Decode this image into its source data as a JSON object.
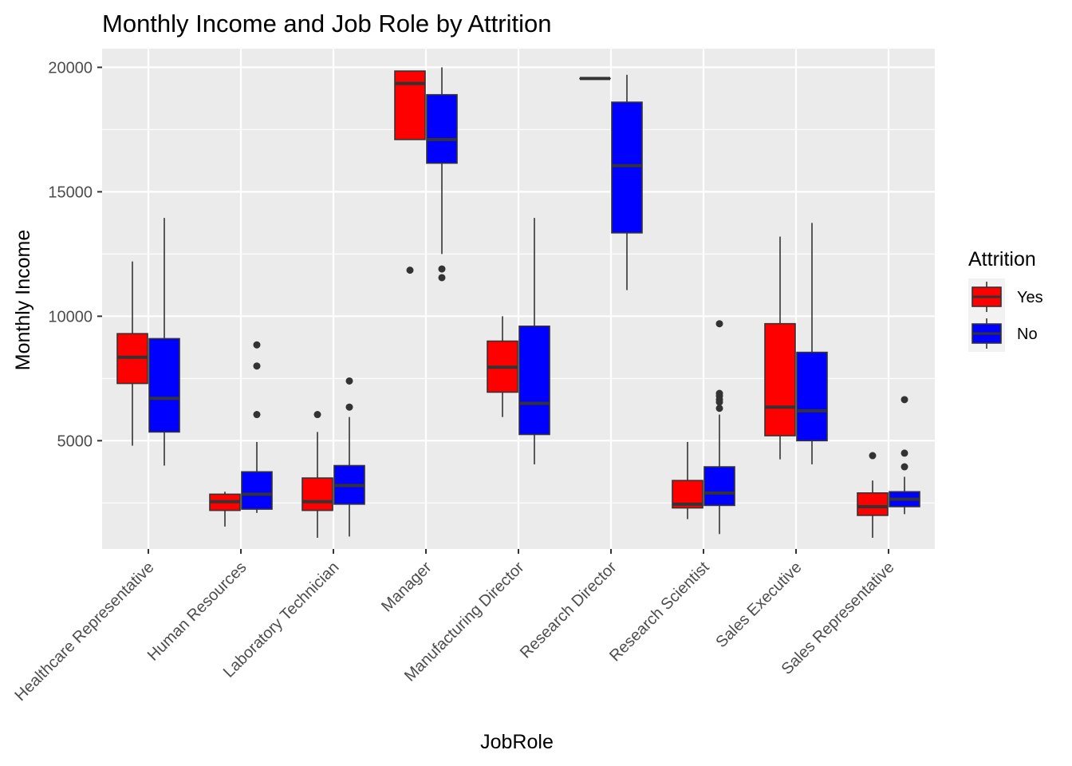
{
  "chart_data": {
    "type": "boxplot",
    "title": "Monthly Income and Job Role by Attrition",
    "xlabel": "JobRole",
    "ylabel": "Monthly Income",
    "ylim": [
      650,
      20750
    ],
    "yticks": [
      5000,
      10000,
      15000,
      20000
    ],
    "grid": true,
    "legend": {
      "title": "Attrition",
      "position": "right",
      "entries": [
        {
          "label": "Yes",
          "color": "#ff0000"
        },
        {
          "label": "No",
          "color": "#0000ff"
        }
      ]
    },
    "categories": [
      "Healthcare Representative",
      "Human Resources",
      "Laboratory Technician",
      "Manager",
      "Manufacturing Director",
      "Research Director",
      "Research Scientist",
      "Sales Executive",
      "Sales Representative"
    ],
    "series": [
      {
        "name": "Yes",
        "color": "#ff0000",
        "boxes": [
          {
            "lower_whisker": 4800,
            "q1": 7300,
            "median": 8350,
            "q3": 9300,
            "upper_whisker": 12200,
            "outliers": []
          },
          {
            "lower_whisker": 1550,
            "q1": 2200,
            "median": 2550,
            "q3": 2850,
            "upper_whisker": 2950,
            "outliers": []
          },
          {
            "lower_whisker": 1100,
            "q1": 2200,
            "median": 2550,
            "q3": 3500,
            "upper_whisker": 5350,
            "outliers": [
              6050
            ]
          },
          {
            "lower_whisker": 17100,
            "q1": 17100,
            "median": 19350,
            "q3": 19850,
            "upper_whisker": 19850,
            "outliers": [
              11850
            ]
          },
          {
            "lower_whisker": 5950,
            "q1": 6950,
            "median": 7950,
            "q3": 9000,
            "upper_whisker": 10000,
            "outliers": []
          },
          {
            "lower_whisker": 19550,
            "q1": 19550,
            "median": 19550,
            "q3": 19550,
            "upper_whisker": 19550,
            "outliers": []
          },
          {
            "lower_whisker": 1850,
            "q1": 2300,
            "median": 2450,
            "q3": 3400,
            "upper_whisker": 4950,
            "outliers": []
          },
          {
            "lower_whisker": 4250,
            "q1": 5200,
            "median": 6350,
            "q3": 9700,
            "upper_whisker": 13200,
            "outliers": []
          },
          {
            "lower_whisker": 1100,
            "q1": 2000,
            "median": 2350,
            "q3": 2900,
            "upper_whisker": 3400,
            "outliers": [
              4400
            ]
          }
        ]
      },
      {
        "name": "No",
        "color": "#0000ff",
        "boxes": [
          {
            "lower_whisker": 4000,
            "q1": 5350,
            "median": 6700,
            "q3": 9100,
            "upper_whisker": 13950,
            "outliers": []
          },
          {
            "lower_whisker": 2100,
            "q1": 2250,
            "median": 2850,
            "q3": 3750,
            "upper_whisker": 4950,
            "outliers": [
              6050,
              8000,
              8850
            ]
          },
          {
            "lower_whisker": 1150,
            "q1": 2450,
            "median": 3200,
            "q3": 4000,
            "upper_whisker": 5950,
            "outliers": [
              6350,
              7400
            ]
          },
          {
            "lower_whisker": 12500,
            "q1": 16150,
            "median": 17100,
            "q3": 18900,
            "upper_whisker": 20000,
            "outliers": [
              11550,
              11900
            ]
          },
          {
            "lower_whisker": 4050,
            "q1": 5250,
            "median": 6500,
            "q3": 9600,
            "upper_whisker": 13950,
            "outliers": []
          },
          {
            "lower_whisker": 11050,
            "q1": 13350,
            "median": 16050,
            "q3": 18600,
            "upper_whisker": 19700,
            "outliers": []
          },
          {
            "lower_whisker": 1250,
            "q1": 2400,
            "median": 2900,
            "q3": 3950,
            "upper_whisker": 6050,
            "outliers": [
              6300,
              6550,
              6650,
              6800,
              6900,
              9700
            ]
          },
          {
            "lower_whisker": 4050,
            "q1": 5000,
            "median": 6200,
            "q3": 8550,
            "upper_whisker": 13750,
            "outliers": []
          },
          {
            "lower_whisker": 2050,
            "q1": 2350,
            "median": 2650,
            "q3": 2950,
            "upper_whisker": 3550,
            "outliers": [
              3950,
              4500,
              6650
            ]
          }
        ]
      }
    ]
  }
}
